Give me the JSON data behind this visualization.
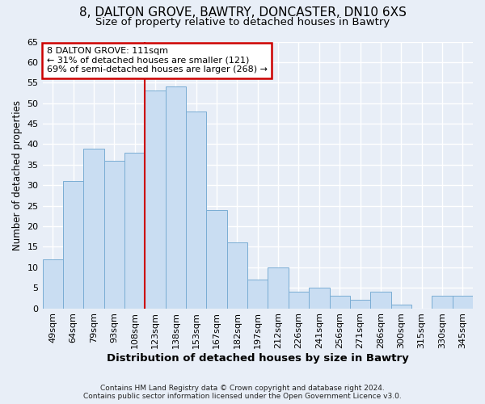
{
  "title_line1": "8, DALTON GROVE, BAWTRY, DONCASTER, DN10 6XS",
  "title_line2": "Size of property relative to detached houses in Bawtry",
  "xlabel": "Distribution of detached houses by size in Bawtry",
  "ylabel": "Number of detached properties",
  "categories": [
    "49sqm",
    "64sqm",
    "79sqm",
    "93sqm",
    "108sqm",
    "123sqm",
    "138sqm",
    "153sqm",
    "167sqm",
    "182sqm",
    "197sqm",
    "212sqm",
    "226sqm",
    "241sqm",
    "256sqm",
    "271sqm",
    "286sqm",
    "300sqm",
    "315sqm",
    "330sqm",
    "345sqm"
  ],
  "values": [
    12,
    31,
    39,
    36,
    38,
    53,
    54,
    48,
    24,
    16,
    7,
    10,
    4,
    5,
    3,
    2,
    4,
    1,
    0,
    3,
    3
  ],
  "bar_color": "#c9ddf2",
  "bar_edge_color": "#7aadd4",
  "vline_x_index": 4.5,
  "annotation_line1": "8 DALTON GROVE: 111sqm",
  "annotation_line2": "← 31% of detached houses are smaller (121)",
  "annotation_line3": "69% of semi-detached houses are larger (268) →",
  "annotation_box_color": "white",
  "annotation_box_edge_color": "#cc0000",
  "vline_color": "#cc0000",
  "ylim": [
    0,
    65
  ],
  "yticks": [
    0,
    5,
    10,
    15,
    20,
    25,
    30,
    35,
    40,
    45,
    50,
    55,
    60,
    65
  ],
  "background_color": "#e8eef7",
  "grid_color": "white",
  "title1_fontsize": 11,
  "title2_fontsize": 9.5,
  "xlabel_fontsize": 9.5,
  "ylabel_fontsize": 8.5,
  "tick_fontsize": 8,
  "footnote": "Contains HM Land Registry data © Crown copyright and database right 2024.\nContains public sector information licensed under the Open Government Licence v3.0."
}
